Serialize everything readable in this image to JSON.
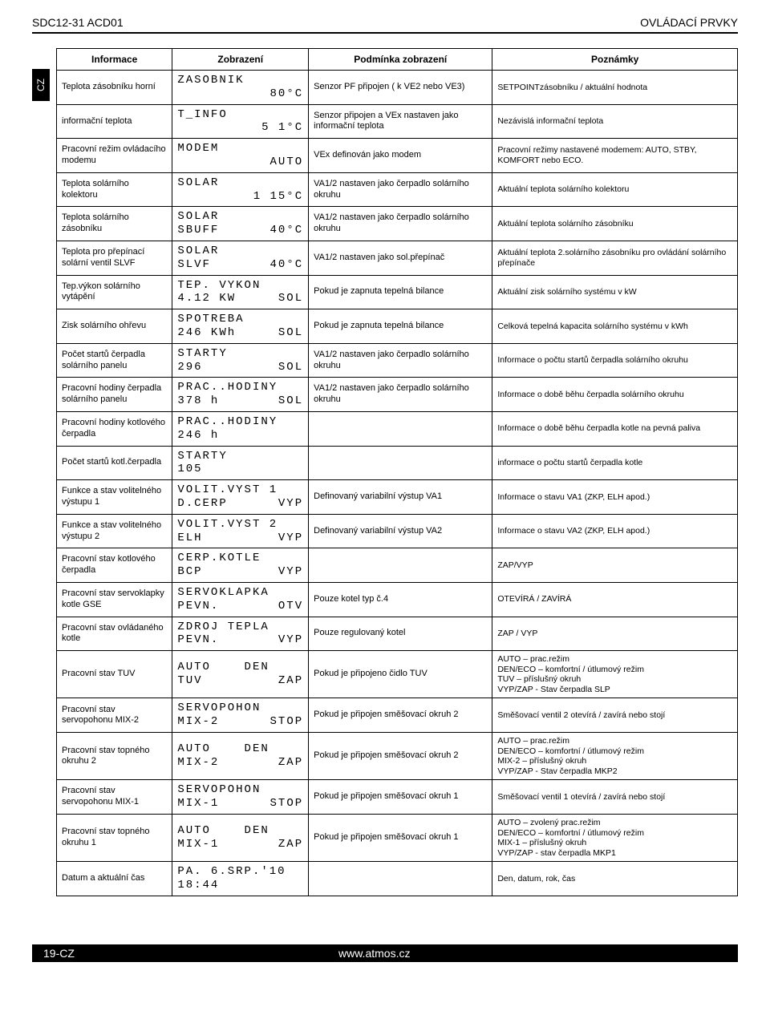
{
  "header": {
    "left": "SDC12-31 ACD01",
    "right": "OVLÁDACÍ PRVKY",
    "side_tab": "CZ"
  },
  "table": {
    "headers": [
      "Informace",
      "Zobrazení",
      "Podmínka zobrazení",
      "Poznámky"
    ],
    "rows": [
      {
        "info": "Teplota zásobníku horní",
        "disp_l1": "ZASOBNIK",
        "disp_l2_left": "",
        "disp_l2_right": "80°C",
        "cond": "Senzor PF připojen ( k VE2 nebo VE3)",
        "notes": "SETPOINTzásobníku / aktuální hodnota"
      },
      {
        "info": "informační teplota",
        "disp_l1": "T_INFO",
        "disp_l2_left": "",
        "disp_l2_right": "5 1°C",
        "cond": "Senzor připojen a VEx nastaven jako informační teplota",
        "notes": "Nezávislá informační teplota"
      },
      {
        "info": "Pracovní režim ovládacího modemu",
        "disp_l1": "MODEM",
        "disp_l2_left": "",
        "disp_l2_right": "AUTO",
        "cond": "VEx definován jako modem",
        "notes": "Pracovní režimy nastavené modemem:  AUTO, STBY, KOMFORT nebo ECO."
      },
      {
        "info": "Teplota solárního kolektoru",
        "disp_l1": "SOLAR",
        "disp_l2_left": "",
        "disp_l2_right": "1 15°C",
        "cond": "VA1/2 nastaven jako čerpadlo solárního okruhu",
        "notes": "Aktuální teplota solárního kolektoru"
      },
      {
        "info": "Teplota solárního zásobníku",
        "disp_l1": "SOLAR",
        "disp_l2_left": "SBUFF",
        "disp_l2_right": "40°C",
        "cond": "VA1/2 nastaven jako čerpadlo solárního okruhu",
        "notes": "Aktuální teplota solárního zásobníku"
      },
      {
        "info": "Teplota pro přepínací solární ventil SLVF",
        "disp_l1": "SOLAR",
        "disp_l2_left": "SLVF",
        "disp_l2_right": "40°C",
        "cond": "VA1/2 nastaven jako sol.přepínač",
        "notes": "Aktuální teplota 2.solárního zásobníku pro ovládání solárního přepínače"
      },
      {
        "info": "Tep.výkon solárního vytápění",
        "disp_l1": "TEP. VYKON",
        "disp_l2_left": "4.12 KW",
        "disp_l2_right": "SOL",
        "cond": "Pokud je zapnuta tepelná bilance",
        "notes": "Aktuální zisk solárního systému v kW"
      },
      {
        "info": "Zisk solárního ohřevu",
        "disp_l1": "SPOTREBA",
        "disp_l2_left": "246 KWh",
        "disp_l2_right": "SOL",
        "cond": "Pokud je zapnuta tepelná bilance",
        "notes": "Celková tepelná kapacita solárního systému v kWh"
      },
      {
        "info": "Počet startů čerpadla solárního panelu",
        "disp_l1": "STARTY",
        "disp_l2_left": "296",
        "disp_l2_right": "SOL",
        "cond": "VA1/2 nastaven jako čerpadlo solárního okruhu",
        "notes": "Informace o počtu startů čerpadla solárního okruhu"
      },
      {
        "info": "Pracovní hodiny čerpadla solárního panelu",
        "disp_l1": "PRAC..HODINY",
        "disp_l2_left": "378 h",
        "disp_l2_right": "SOL",
        "cond": "VA1/2 nastaven jako čerpadlo solárního okruhu",
        "notes": "Informace o době běhu čerpadla solárního okruhu"
      },
      {
        "info": "Pracovní hodiny kotlového čerpadla",
        "disp_l1": "PRAC..HODINY",
        "disp_l2_left": "246 h",
        "disp_l2_right": "",
        "cond": "",
        "notes": "Informace o době běhu čerpadla kotle na pevná paliva"
      },
      {
        "info": "Počet startů kotl.čerpadla",
        "disp_l1": "STARTY",
        "disp_l2_left": "105",
        "disp_l2_right": "",
        "cond": "",
        "notes": "informace o počtu startů čerpadla kotle"
      },
      {
        "info": "Funkce a stav volitelného výstupu 1",
        "disp_l1": "VOLIT.VYST 1",
        "disp_l2_left": "D.CERP",
        "disp_l2_right": "VYP",
        "cond": "Definovaný variabilní výstup VA1",
        "notes": "Informace o stavu VA1 (ZKP, ELH apod.)"
      },
      {
        "info": "Funkce a stav volitelného výstupu 2",
        "disp_l1": "VOLIT.VYST 2",
        "disp_l2_left": "ELH",
        "disp_l2_right": "VYP",
        "cond": "Definovaný variabilní výstup VA2",
        "notes": "Informace o stavu VA2 (ZKP, ELH apod.)"
      },
      {
        "info": "Pracovní stav kotlového čerpadla",
        "disp_l1": "CERP.KOTLE",
        "disp_l2_left": "BCP",
        "disp_l2_right": "VYP",
        "cond": "",
        "notes": "ZAP/VYP"
      },
      {
        "info": "Pracovní stav servoklapky kotle GSE",
        "disp_l1": "SERVOKLAPKA",
        "disp_l2_left": "PEVN.",
        "disp_l2_right": "OTV",
        "cond": "Pouze kotel typ č.4",
        "notes": "OTEVÍRÁ / ZAVÍRÁ"
      },
      {
        "info": "Pracovní stav ovládaného kotle",
        "disp_l1": "ZDROJ TEPLA",
        "disp_l2_left": "PEVN.",
        "disp_l2_right": "VYP",
        "cond": "Pouze regulovaný kotel",
        "notes": "ZAP / VYP"
      },
      {
        "info": "Pracovní stav TUV",
        "disp_l1": "AUTO    DEN",
        "disp_l2_left": "TUV",
        "disp_l2_right": "ZAP",
        "cond": "Pokud je připojeno čidlo TUV",
        "notes": "AUTO – prac.režim\nDEN/ECO – komfortní / útlumový režim\nTUV – příslušný okruh\nVYP/ZAP - Stav čerpadla SLP"
      },
      {
        "info": "Pracovní stav servopohonu MIX-2",
        "disp_l1": "SERVOPOHON",
        "disp_l2_left": "MIX-2",
        "disp_l2_right": "STOP",
        "cond": "Pokud je připojen směšovací okruh 2",
        "notes": "Směšovací ventil 2 otevírá / zavírá nebo stojí"
      },
      {
        "info": "Pracovní stav topného okruhu 2",
        "disp_l1": "AUTO    DEN",
        "disp_l2_left": "MIX-2",
        "disp_l2_right": "ZAP",
        "cond": "Pokud je připojen směšovací okruh 2",
        "notes": "AUTO – prac.režim\nDEN/ECO – komfortní / útlumový režim\nMIX-2 – příslušný okruh\nVYP/ZAP - Stav čerpadla MKP2"
      },
      {
        "info": "Pracovní stav servopohonu MIX-1",
        "disp_l1": "SERVOPOHON",
        "disp_l2_left": "MIX-1",
        "disp_l2_right": "STOP",
        "cond": "Pokud je připojen směšovací okruh 1",
        "notes": "Směšovací ventil 1 otevírá / zavírá nebo stojí"
      },
      {
        "info": "Pracovní stav topného okruhu 1",
        "disp_l1": "AUTO    DEN",
        "disp_l2_left": "MIX-1",
        "disp_l2_right": "ZAP",
        "cond": "Pokud je připojen směšovací okruh 1",
        "notes": "AUTO – zvolený prac.režim\nDEN/ECO – komfortní / útlumový režim\nMIX-1 – příslušný okruh\nVYP/ZAP - stav čerpadla MKP1"
      },
      {
        "info": "Datum a aktuální čas",
        "disp_l1": "PA. 6.SRP.'10",
        "disp_l2_left": "18:44",
        "disp_l2_right": "",
        "cond": "",
        "notes": "Den, datum, rok, čas"
      }
    ]
  },
  "footer": {
    "page": "19-CZ",
    "url": "www.atmos.cz"
  }
}
